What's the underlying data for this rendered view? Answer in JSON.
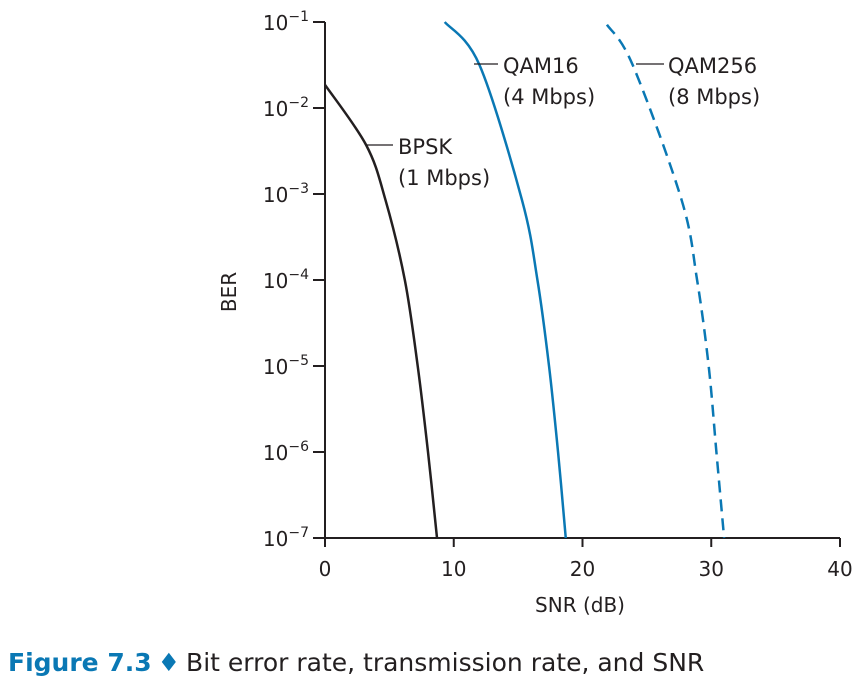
{
  "chart_data": {
    "type": "line",
    "title": "",
    "xlabel": "SNR (dB)",
    "ylabel": "BER",
    "xlim": [
      0,
      40
    ],
    "ylim": [
      1e-07,
      0.1
    ],
    "yscale": "log",
    "grid": false,
    "x_ticks": [
      "0",
      "10",
      "20",
      "30",
      "40"
    ],
    "y_ticks": [
      {
        "base": "10",
        "exp": "−1"
      },
      {
        "base": "10",
        "exp": "−2"
      },
      {
        "base": "10",
        "exp": "−3"
      },
      {
        "base": "10",
        "exp": "−4"
      },
      {
        "base": "10",
        "exp": "−5"
      },
      {
        "base": "10",
        "exp": "−6"
      },
      {
        "base": "10",
        "exp": "−7"
      }
    ],
    "series": [
      {
        "name": "BPSK",
        "rate": "(1 Mbps)",
        "color": "#231f20",
        "dash": false,
        "x": [
          0,
          3.2,
          4.7,
          6.2,
          7.2,
          8.0,
          8.7
        ],
        "y": [
          0.0186,
          0.0037,
          0.00085,
          0.0001,
          1e-05,
          1e-06,
          1e-07
        ]
      },
      {
        "name": "QAM16",
        "rate": "(4 Mbps)",
        "color": "#0a78b4",
        "dash": false,
        "x": [
          9.3,
          12.0,
          15.3,
          16.5,
          17.4,
          18.1,
          18.7
        ],
        "y": [
          0.1,
          0.0316,
          0.00085,
          0.0001,
          1e-05,
          1e-06,
          1e-07
        ]
      },
      {
        "name": "QAM256",
        "rate": "(8 Mbps)",
        "color": "#0a78b4",
        "dash": true,
        "x": [
          21.9,
          23.9,
          27.7,
          28.9,
          29.8,
          30.4,
          31.0
        ],
        "y": [
          0.093,
          0.0316,
          0.00085,
          0.0001,
          1e-05,
          1e-06,
          1e-07
        ]
      }
    ]
  },
  "caption": {
    "figure": "Figure 7.3",
    "separator": "♦",
    "text": "Bit error rate, transmission rate, and SNR"
  }
}
